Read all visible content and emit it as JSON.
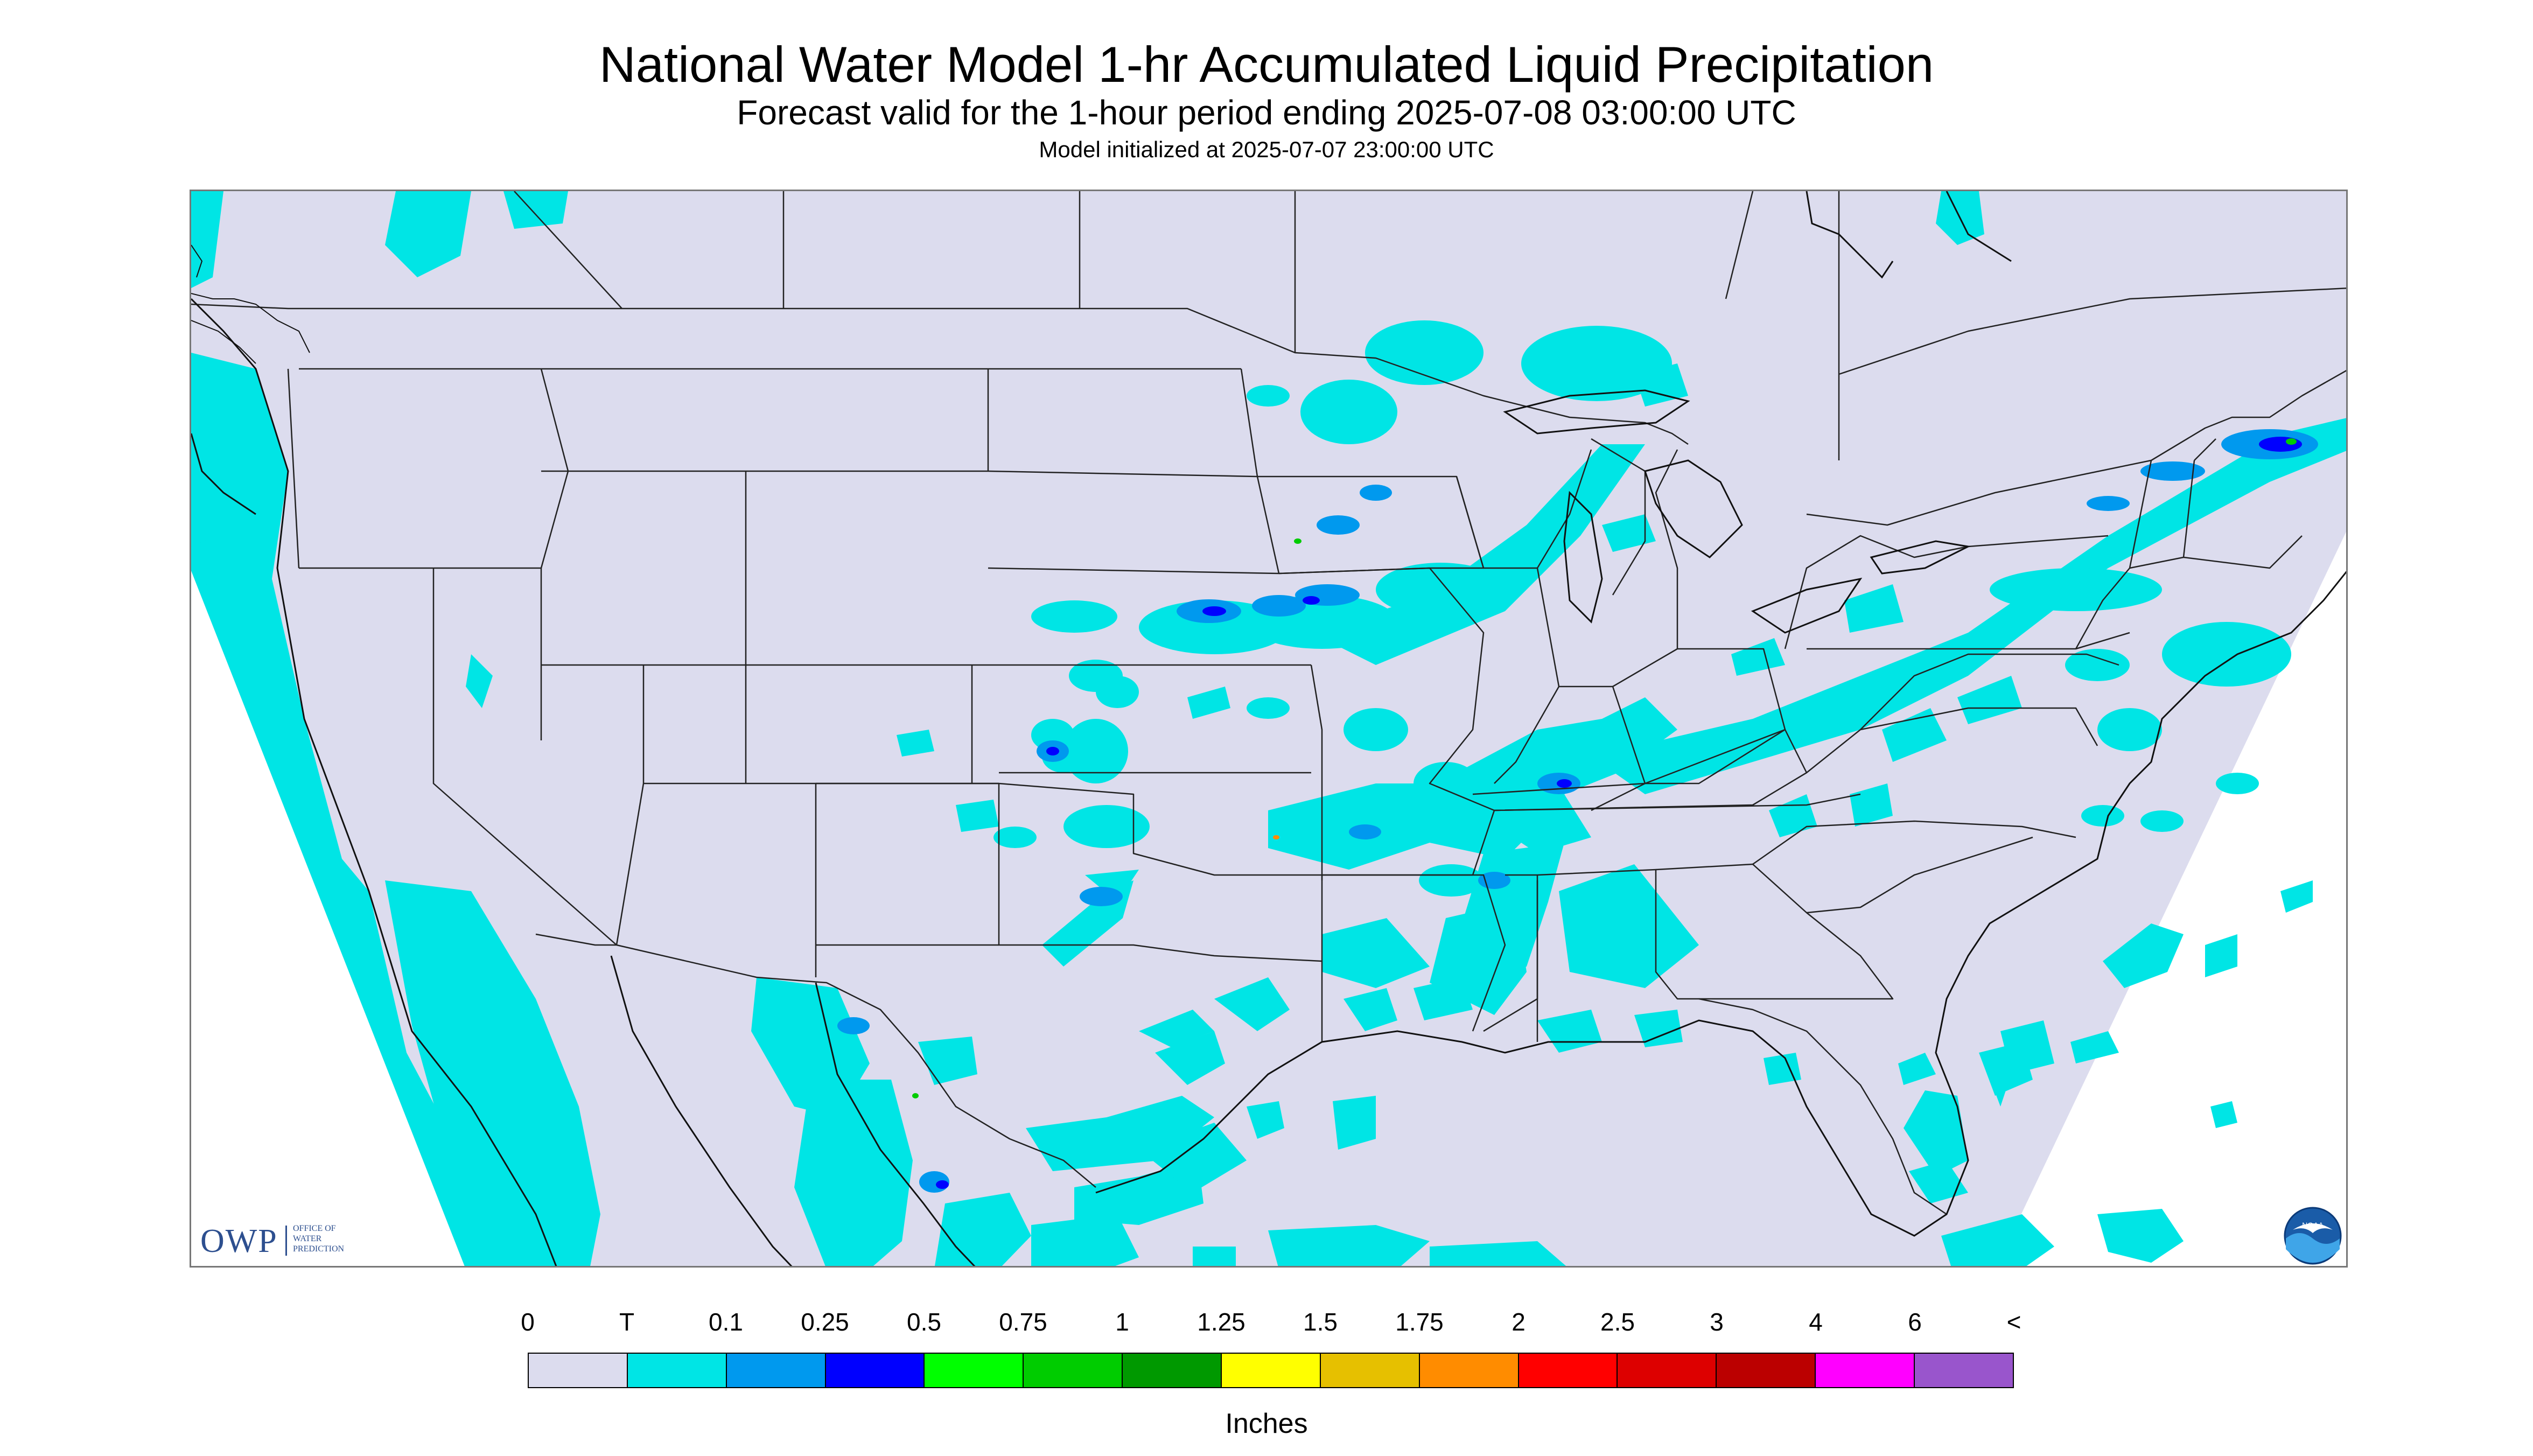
{
  "header": {
    "title": "National Water Model 1-hr Accumulated Liquid Precipitation",
    "subtitle": "Forecast valid for the 1-hour period ending 2025-07-08 03:00:00 UTC",
    "init_line": "Model initialized at 2025-07-07 23:00:00 UTC"
  },
  "logos": {
    "owp_text": "OWP",
    "owp_sub": [
      "OFFICE OF",
      "WATER",
      "PREDICTION"
    ],
    "noaa_text": "NOAA"
  },
  "legend": {
    "labels": [
      "0",
      "T",
      "0.1",
      "0.25",
      "0.5",
      "0.75",
      "1",
      "1.25",
      "1.5",
      "1.75",
      "2",
      "2.5",
      "3",
      "4",
      "6",
      "<"
    ],
    "colors": [
      "#dcdcee",
      "#00e5e5",
      "#0099ee",
      "#0000ff",
      "#00ff00",
      "#00cc00",
      "#009900",
      "#ffff00",
      "#e6c000",
      "#ff8c00",
      "#ff0000",
      "#dd0000",
      "#bb0000",
      "#ff00ff",
      "#9955cc"
    ],
    "units": "Inches"
  },
  "map_colors": {
    "no_precip": "#dcdcee",
    "trace": "#00e5e5",
    "light": "#0099ee",
    "moderate": "#0000ff",
    "boundary": "#222222",
    "outside": "#ffffff"
  }
}
